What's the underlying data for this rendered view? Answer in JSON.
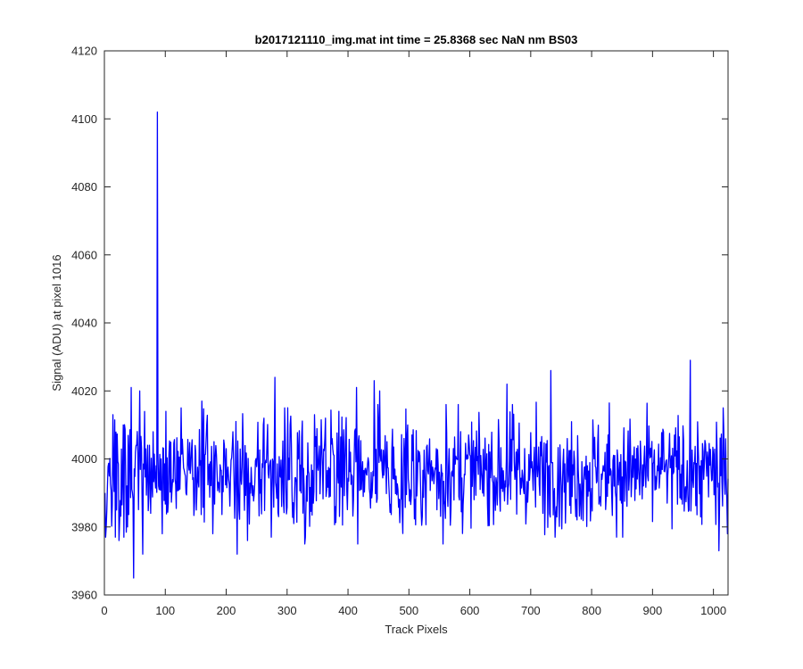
{
  "chart_data": {
    "type": "line",
    "title": "b2017121110_img.mat int time = 25.8368 sec  NaN nm BS03",
    "xlabel": "Track Pixels",
    "ylabel": "Signal (ADU) at pixel 1016",
    "xlim": [
      0,
      1024
    ],
    "ylim": [
      3960,
      4120
    ],
    "xticks": [
      0,
      100,
      200,
      300,
      400,
      500,
      600,
      700,
      800,
      900,
      1000
    ],
    "yticks": [
      3960,
      3980,
      4000,
      4020,
      4040,
      4060,
      4080,
      4100,
      4120
    ],
    "grid": false,
    "legend": "none",
    "series": [
      {
        "color": "#0000ff",
        "noise_seed": 1016,
        "noise_mean": 3996,
        "noise_spread": 13,
        "x_start": 1,
        "x_end": 1024,
        "points": [
          [
            1,
            3990
          ],
          [
            3,
            3980
          ],
          [
            8,
            3995
          ],
          [
            14,
            4013
          ],
          [
            20,
            3985
          ],
          [
            24,
            3976
          ],
          [
            31,
            4010
          ],
          [
            38,
            3980
          ],
          [
            44,
            4021
          ],
          [
            48,
            3965
          ],
          [
            52,
            4004
          ],
          [
            58,
            4020
          ],
          [
            63,
            3972
          ],
          [
            70,
            3996
          ],
          [
            76,
            3984
          ],
          [
            80,
            4008
          ],
          [
            85,
            3998
          ],
          [
            87,
            4102
          ],
          [
            89,
            3992
          ],
          [
            93,
            4000
          ],
          [
            95,
            3978
          ],
          [
            101,
            4014
          ],
          [
            126,
            4015
          ],
          [
            160,
            4017
          ],
          [
            178,
            3978
          ],
          [
            200,
            4003
          ],
          [
            216,
            4011
          ],
          [
            218,
            3972
          ],
          [
            235,
            3976
          ],
          [
            262,
            4012
          ],
          [
            280,
            4024
          ],
          [
            296,
            4015
          ],
          [
            305,
            4010
          ],
          [
            311,
            3981
          ],
          [
            329,
            3975
          ],
          [
            345,
            4013
          ],
          [
            358,
            3998
          ],
          [
            363,
            4012
          ],
          [
            385,
            4014
          ],
          [
            414,
            4021
          ],
          [
            416,
            3975
          ],
          [
            443,
            4023
          ],
          [
            452,
            4020
          ],
          [
            476,
            3994
          ],
          [
            498,
            4010
          ],
          [
            556,
            3975
          ],
          [
            561,
            4016
          ],
          [
            566,
            4003
          ],
          [
            581,
            4016
          ],
          [
            618,
            4001
          ],
          [
            661,
            4022
          ],
          [
            670,
            4016
          ],
          [
            720,
            3984
          ],
          [
            733,
            4026
          ],
          [
            766,
            3984
          ],
          [
            824,
            3989
          ],
          [
            838,
            4001
          ],
          [
            846,
            3999
          ],
          [
            918,
            4008
          ],
          [
            962,
            4029
          ],
          [
            984,
            3994
          ],
          [
            1009,
            3973
          ],
          [
            1016,
            4015
          ],
          [
            1023,
            3978
          ]
        ]
      }
    ]
  }
}
